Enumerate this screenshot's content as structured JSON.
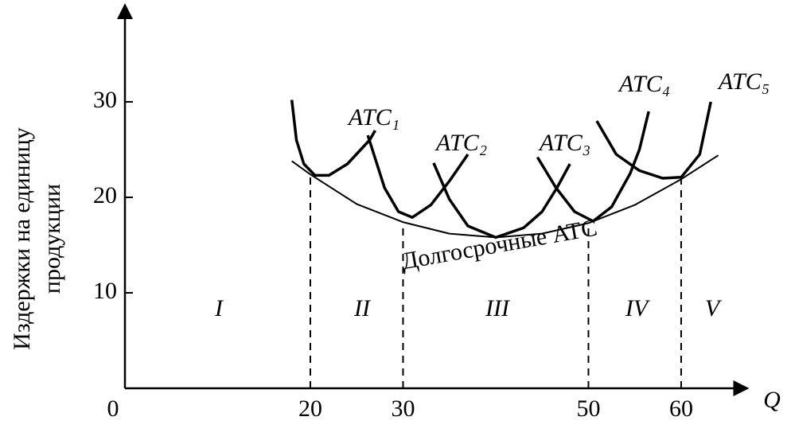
{
  "chart_data": {
    "type": "line",
    "y_label": [
      "Издержки на единицу",
      "продукции"
    ],
    "x_label": "Q",
    "xlim": [
      0,
      67
    ],
    "ylim": [
      0,
      40
    ],
    "xticks": [
      0,
      20,
      30,
      50,
      60
    ],
    "yticks": [
      10,
      20,
      30
    ],
    "regions": [
      "I",
      "II",
      "III",
      "IV",
      "V"
    ],
    "series": [
      {
        "name": "ATC₁",
        "color": "#000",
        "x": [
          18,
          18.5,
          19.3,
          20.5,
          22,
          24,
          26.4,
          27
        ],
        "values": [
          30.2,
          26,
          23.5,
          22.3,
          22.3,
          23.5,
          26,
          27
        ]
      },
      {
        "name": "ATC₂",
        "color": "#000",
        "x": [
          26.2,
          28,
          29.5,
          31,
          33,
          35,
          37
        ],
        "values": [
          26.5,
          21,
          18.5,
          17.9,
          19.2,
          21.7,
          24.5
        ]
      },
      {
        "name": "ATC₃",
        "color": "#000",
        "x": [
          33.3,
          35,
          37,
          40,
          43,
          45,
          46.6,
          48
        ],
        "values": [
          23.6,
          19.8,
          17,
          15.8,
          16.8,
          18.5,
          21,
          23.5
        ]
      },
      {
        "name": "ATC₄",
        "color": "#000",
        "x": [
          44.5,
          46.5,
          48.5,
          50.5,
          52.5,
          54.5,
          55.5,
          56.5
        ],
        "values": [
          24.2,
          21,
          18.5,
          17.5,
          19,
          22.5,
          25,
          29
        ]
      },
      {
        "name": "ATC₅",
        "color": "#000",
        "x": [
          50.9,
          53,
          55.5,
          58,
          60,
          62,
          63.2
        ],
        "values": [
          28,
          24.5,
          22.8,
          22,
          22.1,
          24.5,
          30
        ]
      },
      {
        "name": "Долгосрочные ATC",
        "color": "#000",
        "x": [
          18,
          20,
          25,
          30,
          35,
          40,
          45,
          50,
          55,
          60,
          64
        ],
        "values": [
          23.8,
          22.4,
          19.3,
          17.4,
          16.2,
          15.8,
          16.2,
          17.3,
          19.2,
          21.9,
          24.4
        ]
      }
    ]
  }
}
